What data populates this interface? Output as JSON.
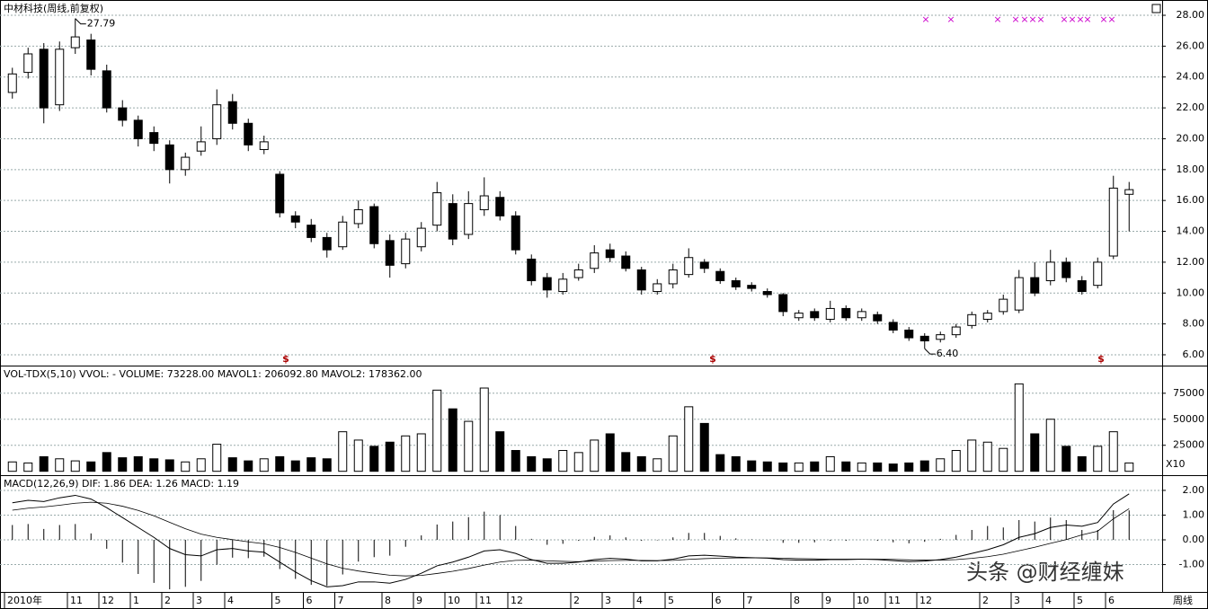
{
  "chart_data": [
    {
      "type": "candlestick",
      "title": "中材科技(周线,前复权)",
      "high_label": "27.79",
      "low_label": "6.40",
      "buy_signal": "$",
      "sell_signal": "×",
      "period_label": "周线",
      "ylim": [
        5.3,
        28.7
      ],
      "yticks": [
        {
          "value": 6,
          "label": "6.00"
        },
        {
          "value": 8,
          "label": "8.00"
        },
        {
          "value": 10,
          "label": "10.00"
        },
        {
          "value": 12,
          "label": "12.00"
        },
        {
          "value": 14,
          "label": "14.00"
        },
        {
          "value": 16,
          "label": "16.00"
        },
        {
          "value": 18,
          "label": "18.00"
        },
        {
          "value": 20,
          "label": "20.00"
        },
        {
          "value": 22,
          "label": "22.00"
        },
        {
          "value": 24,
          "label": "24.00"
        },
        {
          "value": 26,
          "label": "26.00"
        },
        {
          "value": 28,
          "label": "28.00"
        }
      ],
      "xticks": [
        {
          "value": 0,
          "label": "2010年"
        },
        {
          "value": 4,
          "label": "11"
        },
        {
          "value": 6,
          "label": "12"
        },
        {
          "value": 8,
          "label": "1"
        },
        {
          "value": 10,
          "label": "2"
        },
        {
          "value": 12,
          "label": "3"
        },
        {
          "value": 14,
          "label": "4"
        },
        {
          "value": 17,
          "label": "5"
        },
        {
          "value": 19,
          "label": "6"
        },
        {
          "value": 21,
          "label": "7"
        },
        {
          "value": 24,
          "label": "8"
        },
        {
          "value": 26,
          "label": "9"
        },
        {
          "value": 28,
          "label": "10"
        },
        {
          "value": 30,
          "label": "11"
        },
        {
          "value": 32,
          "label": "12"
        },
        {
          "value": 36,
          "label": "2"
        },
        {
          "value": 38,
          "label": "3"
        },
        {
          "value": 40,
          "label": "4"
        },
        {
          "value": 42,
          "label": "5"
        },
        {
          "value": 45,
          "label": "6"
        },
        {
          "value": 47,
          "label": "7"
        },
        {
          "value": 50,
          "label": "8"
        },
        {
          "value": 52,
          "label": "9"
        },
        {
          "value": 54,
          "label": "10"
        },
        {
          "value": 56,
          "label": "11"
        },
        {
          "value": 58,
          "label": "12"
        },
        {
          "value": 62,
          "label": "2"
        },
        {
          "value": 64,
          "label": "3"
        },
        {
          "value": 66,
          "label": "4"
        },
        {
          "value": 68,
          "label": "5"
        },
        {
          "value": 70,
          "label": "6"
        }
      ],
      "candles": [
        [
          23.0,
          24.6,
          22.6,
          24.2
        ],
        [
          24.3,
          25.9,
          23.9,
          25.5
        ],
        [
          25.8,
          26.2,
          21.0,
          22.0
        ],
        [
          22.2,
          26.3,
          21.8,
          25.8
        ],
        [
          25.9,
          27.79,
          25.5,
          26.6
        ],
        [
          26.4,
          26.8,
          24.1,
          24.5
        ],
        [
          24.4,
          24.8,
          21.7,
          22.0
        ],
        [
          22.0,
          22.5,
          20.8,
          21.2
        ],
        [
          21.2,
          21.5,
          19.5,
          20.0
        ],
        [
          20.4,
          20.8,
          19.2,
          19.7
        ],
        [
          19.6,
          19.9,
          17.1,
          18.0
        ],
        [
          18.0,
          19.1,
          17.6,
          18.8
        ],
        [
          19.2,
          20.8,
          18.9,
          19.8
        ],
        [
          20.0,
          23.2,
          19.6,
          22.2
        ],
        [
          22.4,
          22.9,
          20.6,
          21.0
        ],
        [
          21.0,
          21.3,
          19.2,
          19.6
        ],
        [
          19.3,
          20.2,
          19.0,
          19.8
        ],
        [
          17.7,
          17.9,
          14.9,
          15.2
        ],
        [
          15.0,
          15.3,
          14.2,
          14.6
        ],
        [
          14.4,
          14.8,
          13.3,
          13.6
        ],
        [
          13.6,
          13.9,
          12.3,
          12.8
        ],
        [
          13.0,
          15.0,
          12.8,
          14.6
        ],
        [
          14.5,
          16.0,
          14.2,
          15.4
        ],
        [
          15.6,
          15.8,
          12.9,
          13.2
        ],
        [
          13.4,
          13.8,
          11.0,
          11.8
        ],
        [
          11.9,
          13.9,
          11.6,
          13.5
        ],
        [
          13.0,
          14.6,
          12.7,
          14.2
        ],
        [
          14.4,
          17.2,
          14.0,
          16.5
        ],
        [
          15.8,
          16.4,
          13.1,
          13.5
        ],
        [
          13.8,
          16.6,
          13.5,
          15.8
        ],
        [
          15.4,
          17.5,
          15.0,
          16.3
        ],
        [
          16.2,
          16.6,
          14.7,
          15.0
        ],
        [
          15.0,
          15.3,
          12.5,
          12.8
        ],
        [
          12.2,
          12.5,
          10.5,
          10.8
        ],
        [
          11.0,
          11.3,
          9.7,
          10.2
        ],
        [
          10.1,
          11.3,
          9.9,
          10.9
        ],
        [
          11.0,
          11.9,
          10.8,
          11.5
        ],
        [
          11.6,
          13.1,
          11.3,
          12.6
        ],
        [
          12.8,
          13.2,
          12.0,
          12.3
        ],
        [
          12.4,
          12.7,
          11.4,
          11.6
        ],
        [
          11.5,
          11.7,
          9.9,
          10.2
        ],
        [
          10.1,
          10.9,
          9.9,
          10.6
        ],
        [
          10.6,
          11.9,
          10.3,
          11.5
        ],
        [
          11.2,
          12.9,
          11.0,
          12.3
        ],
        [
          12.0,
          12.2,
          11.3,
          11.6
        ],
        [
          11.4,
          11.6,
          10.6,
          10.8
        ],
        [
          10.8,
          11.0,
          10.2,
          10.4
        ],
        [
          10.5,
          10.7,
          10.1,
          10.3
        ],
        [
          10.1,
          10.3,
          9.7,
          9.9
        ],
        [
          9.9,
          10.0,
          8.5,
          8.8
        ],
        [
          8.4,
          8.9,
          8.2,
          8.7
        ],
        [
          8.8,
          9.0,
          8.2,
          8.4
        ],
        [
          8.3,
          9.5,
          8.1,
          9.0
        ],
        [
          9.0,
          9.2,
          8.2,
          8.4
        ],
        [
          8.4,
          9.0,
          8.2,
          8.8
        ],
        [
          8.6,
          8.8,
          8.0,
          8.2
        ],
        [
          8.1,
          8.3,
          7.4,
          7.6
        ],
        [
          7.6,
          7.8,
          6.9,
          7.1
        ],
        [
          7.2,
          7.4,
          6.4,
          6.9
        ],
        [
          7.0,
          7.5,
          6.8,
          7.3
        ],
        [
          7.3,
          8.0,
          7.1,
          7.8
        ],
        [
          7.9,
          8.8,
          7.7,
          8.6
        ],
        [
          8.3,
          8.9,
          8.1,
          8.7
        ],
        [
          8.8,
          9.9,
          8.6,
          9.6
        ],
        [
          8.9,
          11.5,
          8.7,
          11.0
        ],
        [
          11.0,
          12.0,
          9.8,
          10.0
        ],
        [
          10.8,
          12.8,
          10.5,
          12.0
        ],
        [
          12.0,
          12.3,
          10.7,
          11.0
        ],
        [
          10.8,
          11.1,
          9.9,
          10.1
        ],
        [
          10.5,
          12.3,
          10.3,
          12.0
        ],
        [
          12.4,
          17.6,
          12.2,
          16.8
        ],
        [
          16.4,
          17.2,
          14.0,
          16.7
        ]
      ]
    },
    {
      "type": "volume",
      "title": "VOL-TDX(5,10) VVOL: -  VOLUME: 73228.00  MAVOL1: 206092.80  MAVOL2: 178362.00",
      "unit_label": "X10",
      "ylim": [
        -2000,
        99000
      ],
      "yticks": [
        25000,
        50000,
        75000
      ],
      "values": [
        9000,
        8000,
        14000,
        12000,
        10000,
        9000,
        18000,
        13000,
        14000,
        12000,
        11000,
        9000,
        12000,
        26000,
        13000,
        10000,
        12000,
        14000,
        10000,
        13000,
        12000,
        38000,
        30000,
        24000,
        28000,
        34000,
        36000,
        78000,
        60000,
        48000,
        80000,
        38000,
        20000,
        14000,
        12000,
        20000,
        18000,
        30000,
        36000,
        18000,
        14000,
        12000,
        34000,
        62000,
        46000,
        16000,
        14000,
        10000,
        9000,
        8000,
        8000,
        9000,
        14000,
        9000,
        8000,
        8000,
        7000,
        8000,
        10000,
        12000,
        20000,
        30000,
        28000,
        22000,
        84000,
        36000,
        50000,
        24000,
        14000,
        24000,
        38000,
        8000
      ]
    },
    {
      "type": "macd",
      "title": "MACD(12,26,9) DIF: 1.86 DEA: 1.26 MACD: 1.19",
      "ylim": [
        -2.07,
        2.47
      ],
      "yticks": [
        {
          "value": 2,
          "label": "2.00"
        },
        {
          "value": 1,
          "label": "1.00"
        },
        {
          "value": 0,
          "label": "0.00"
        },
        {
          "value": -1,
          "label": "-1.00"
        }
      ],
      "dif": [
        1.5,
        1.6,
        1.55,
        1.7,
        1.8,
        1.65,
        1.3,
        0.9,
        0.5,
        0.1,
        -0.35,
        -0.6,
        -0.65,
        -0.4,
        -0.35,
        -0.45,
        -0.5,
        -0.9,
        -1.3,
        -1.65,
        -1.9,
        -1.85,
        -1.7,
        -1.7,
        -1.75,
        -1.6,
        -1.35,
        -1.05,
        -0.9,
        -0.7,
        -0.45,
        -0.4,
        -0.55,
        -0.8,
        -0.95,
        -0.95,
        -0.9,
        -0.8,
        -0.75,
        -0.78,
        -0.85,
        -0.85,
        -0.78,
        -0.65,
        -0.62,
        -0.66,
        -0.7,
        -0.72,
        -0.74,
        -0.8,
        -0.82,
        -0.82,
        -0.8,
        -0.8,
        -0.78,
        -0.8,
        -0.84,
        -0.88,
        -0.86,
        -0.8,
        -0.7,
        -0.55,
        -0.4,
        -0.2,
        0.1,
        0.25,
        0.5,
        0.6,
        0.55,
        0.7,
        1.45,
        1.86
      ],
      "dea": [
        1.2,
        1.28,
        1.33,
        1.4,
        1.48,
        1.52,
        1.48,
        1.36,
        1.19,
        0.97,
        0.71,
        0.45,
        0.23,
        0.1,
        0.01,
        -0.08,
        -0.16,
        -0.31,
        -0.51,
        -0.74,
        -0.97,
        -1.15,
        -1.26,
        -1.35,
        -1.43,
        -1.46,
        -1.44,
        -1.36,
        -1.27,
        -1.16,
        -1.02,
        -0.9,
        -0.83,
        -0.82,
        -0.85,
        -0.87,
        -0.88,
        -0.86,
        -0.84,
        -0.83,
        -0.83,
        -0.84,
        -0.83,
        -0.79,
        -0.76,
        -0.74,
        -0.73,
        -0.73,
        -0.73,
        -0.74,
        -0.76,
        -0.77,
        -0.78,
        -0.78,
        -0.78,
        -0.78,
        -0.79,
        -0.81,
        -0.82,
        -0.82,
        -0.8,
        -0.75,
        -0.68,
        -0.58,
        -0.44,
        -0.3,
        -0.14,
        0.01,
        0.2,
        0.35,
        0.85,
        1.26
      ],
      "macd": [
        0.6,
        0.64,
        0.44,
        0.6,
        0.64,
        0.26,
        -0.36,
        -0.92,
        -1.38,
        -1.74,
        -2.0,
        -1.9,
        -1.66,
        -1.0,
        -0.72,
        -0.74,
        -0.68,
        -1.18,
        -1.58,
        -1.82,
        -1.86,
        -1.4,
        -0.88,
        -0.7,
        -0.64,
        -0.28,
        0.18,
        0.62,
        0.74,
        0.92,
        1.14,
        1.0,
        0.56,
        0.04,
        -0.2,
        -0.16,
        -0.04,
        0.12,
        0.18,
        0.1,
        -0.04,
        -0.02,
        0.1,
        0.28,
        0.28,
        0.16,
        0.06,
        0.02,
        -0.02,
        -0.12,
        -0.12,
        -0.1,
        -0.04,
        -0.04,
        0.0,
        -0.04,
        -0.1,
        -0.14,
        -0.08,
        0.04,
        0.2,
        0.4,
        0.56,
        0.5,
        0.8,
        0.74,
        0.9,
        0.8,
        0.4,
        0.4,
        1.2,
        1.19
      ]
    }
  ],
  "watermark": "头条 @财经缠妹"
}
